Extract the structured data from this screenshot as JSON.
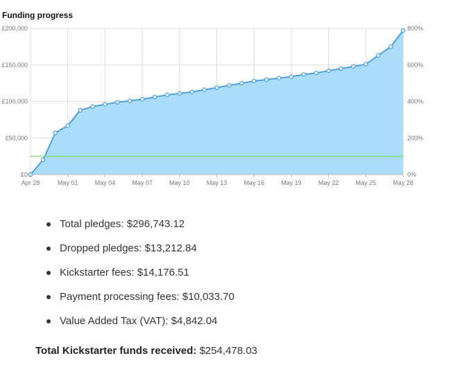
{
  "title": "Funding progress",
  "chart_data": {
    "type": "area",
    "title": "Funding progress",
    "x": [
      "Apr 28",
      "Apr 29",
      "Apr 30",
      "May 01",
      "May 02",
      "May 03",
      "May 04",
      "May 05",
      "May 06",
      "May 07",
      "May 08",
      "May 09",
      "May 10",
      "May 11",
      "May 12",
      "May 13",
      "May 14",
      "May 15",
      "May 16",
      "May 17",
      "May 18",
      "May 19",
      "May 20",
      "May 21",
      "May 22",
      "May 23",
      "May 24",
      "May 25",
      "May 26",
      "May 27",
      "May 28"
    ],
    "x_tick_labels": [
      "Apr 28",
      "May 01",
      "May 04",
      "May 07",
      "May 10",
      "May 13",
      "May 16",
      "May 19",
      "May 22",
      "May 25",
      "May 28"
    ],
    "series": [
      {
        "name": "Funding",
        "color": "#4aa3df",
        "fill": "#abdcf9",
        "values": [
          0,
          20000,
          57000,
          67000,
          88000,
          93000,
          96000,
          99000,
          101000,
          103000,
          106000,
          109000,
          111000,
          113000,
          116000,
          119000,
          122000,
          125000,
          128000,
          130000,
          132000,
          134000,
          137000,
          139000,
          142000,
          145000,
          148000,
          151000,
          163000,
          175000,
          197000
        ]
      }
    ],
    "goal": {
      "value": 25000,
      "color": "#7fdc7f"
    },
    "y_left": {
      "ticks": [
        0,
        50000,
        100000,
        150000,
        200000
      ],
      "labels": [
        "£0",
        "£50,000",
        "£100,000",
        "£150,000",
        "£200,000"
      ],
      "range": [
        0,
        200000
      ]
    },
    "y_right": {
      "ticks": [
        0,
        200,
        400,
        600,
        800
      ],
      "labels": [
        "0%",
        "200%",
        "400%",
        "600%",
        "800%"
      ],
      "range": [
        0,
        800
      ]
    },
    "grid": true
  },
  "summary": {
    "items": [
      "Total pledges: $296,743.12",
      "Dropped pledges: $13,212.84",
      "Kickstarter fees: $14,176.51",
      "Payment processing fees: $10,033.70",
      "Value Added Tax (VAT): $4,842.04"
    ],
    "total_label": "Total Kickstarter funds received:",
    "total_value": "$254,478.03"
  }
}
